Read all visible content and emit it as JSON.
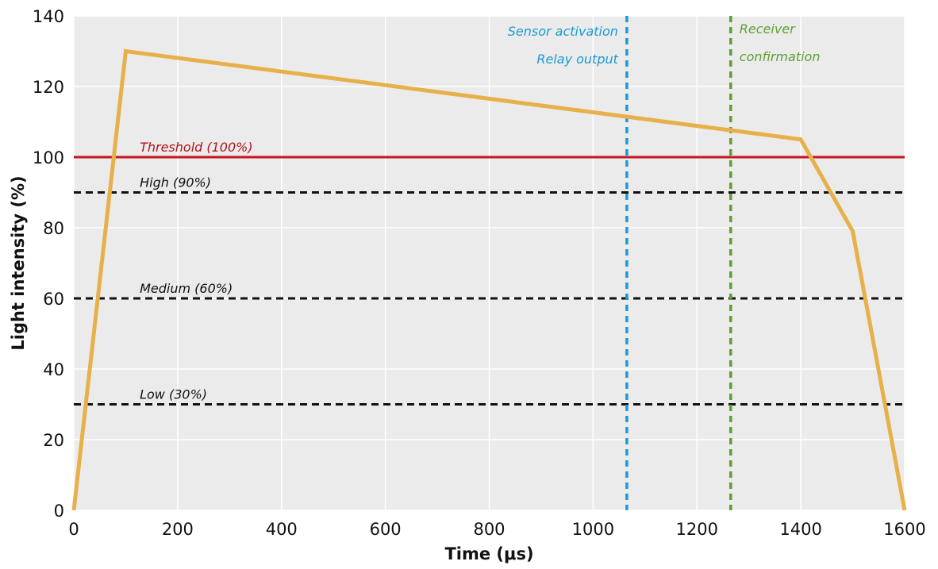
{
  "chart_data": {
    "type": "line",
    "title": "",
    "xlabel": "Time (μs)",
    "ylabel": "Light intensity (%)",
    "xlim": [
      0,
      1600
    ],
    "ylim": [
      0,
      140
    ],
    "xticks": [
      0,
      200,
      400,
      600,
      800,
      1000,
      1200,
      1400,
      1600
    ],
    "yticks": [
      0,
      20,
      40,
      60,
      80,
      100,
      120,
      140
    ],
    "grid": true,
    "series": [
      {
        "color": "#E8B04A",
        "points": [
          [
            0,
            0
          ],
          [
            100,
            130
          ],
          [
            1400,
            105
          ],
          [
            1500,
            79
          ],
          [
            1600,
            0
          ]
        ]
      }
    ],
    "hlines": [
      {
        "label": "Threshold (100%)",
        "y": 100,
        "color": "#C8141E",
        "style": "solid",
        "label_color": "#B0121C"
      },
      {
        "label": "High (90%)",
        "y": 90,
        "color": "#111111",
        "style": "dashed",
        "label_color": "#111111"
      },
      {
        "label": "Medium (60%)",
        "y": 60,
        "color": "#111111",
        "style": "dashed",
        "label_color": "#111111"
      },
      {
        "label": "Low (30%)",
        "y": 30,
        "color": "#111111",
        "style": "dashed",
        "label_color": "#111111"
      }
    ],
    "vlines": [
      {
        "x": 1065,
        "color": "#1A9AD6",
        "labels": [
          "Sensor activation",
          "Relay output"
        ],
        "label_side": "left"
      },
      {
        "x": 1265,
        "color": "#5E9E32",
        "labels": [
          "Receiver",
          "confirmation"
        ],
        "label_side": "right"
      }
    ],
    "plot_background": "#EBEBEB",
    "grid_color": "#FFFFFF"
  }
}
